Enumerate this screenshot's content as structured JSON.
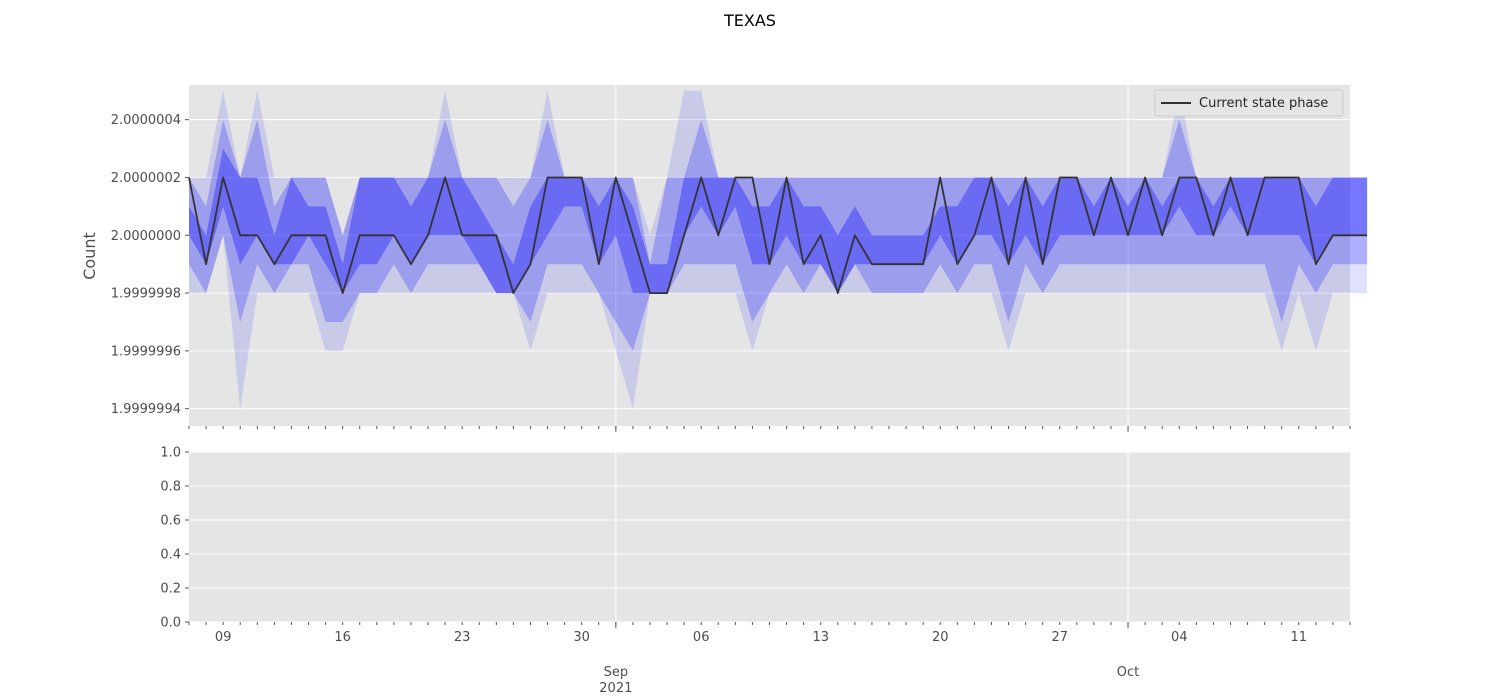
{
  "chart_data": {
    "type": "line",
    "title": "TEXAS",
    "ylabel": "Count",
    "colors": {
      "background": "#e5e5e5",
      "grid": "#ffffff",
      "line": "#333333",
      "band": "#0000ff"
    },
    "x_range": [
      "2021-08-07",
      "2021-10-14"
    ],
    "top": {
      "ylim": [
        1.99999934,
        2.00000052
      ],
      "yticks": [
        {
          "value": 2.0000004,
          "label": "2.0000004"
        },
        {
          "value": 2.0000002,
          "label": "2.0000002"
        },
        {
          "value": 2.0,
          "label": "2.0000000"
        },
        {
          "value": 1.9999998,
          "label": "1.9999998"
        },
        {
          "value": 1.9999996,
          "label": "1.9999996"
        },
        {
          "value": 1.9999994,
          "label": "1.9999994"
        }
      ],
      "legend": {
        "position": "top-right",
        "label": "Current state phase"
      },
      "series": [
        {
          "name": "Current state phase",
          "x_start": "2021-08-07",
          "step": "1 day",
          "values": [
            2.0000002,
            1.9999999,
            2.0000002,
            2.0,
            2.0,
            1.9999999,
            2.0,
            2.0,
            2.0,
            1.9999998,
            2.0,
            2.0,
            2.0,
            1.9999999,
            2.0,
            2.0000002,
            2.0,
            2.0,
            2.0,
            1.9999998,
            1.9999999,
            2.0000002,
            2.0000002,
            2.0000002,
            1.9999999,
            2.0000002,
            2.0,
            1.9999998,
            1.9999998,
            2.0,
            2.0000002,
            2.0,
            2.0000002,
            2.0000002,
            1.9999999,
            2.0000002,
            1.9999999,
            2.0,
            1.9999998,
            2.0,
            1.9999999,
            1.9999999,
            1.9999999,
            1.9999999,
            2.0000002,
            1.9999999,
            2.0,
            2.0000002,
            1.9999999,
            2.0000002,
            1.9999999,
            2.0000002,
            2.0000002,
            2.0,
            2.0000002,
            2.0,
            2.0000002,
            2.0,
            2.0000002,
            2.0000002,
            2.0,
            2.0000002,
            2.0,
            2.0000002,
            2.0000002,
            2.0000002,
            1.9999999,
            2.0,
            2.0,
            2.0
          ]
        }
      ],
      "bands": [
        {
          "upper": [
            2.0000002,
            2.0000002,
            2.0000005,
            2.0000002,
            2.0000005,
            2.0000002,
            2.0000002,
            2.0000002,
            2.0000002,
            2.0,
            2.0000002,
            2.0000002,
            2.0000002,
            2.0000002,
            2.0000002,
            2.0000005,
            2.0000002,
            2.0000002,
            2.0000002,
            2.0000002,
            2.0000002,
            2.0000005,
            2.0000002,
            2.0000002,
            2.0000002,
            2.0000002,
            2.0000002,
            2.0,
            2.0000002,
            2.0000005,
            2.0000005,
            2.0000002,
            2.0000002,
            2.0000002,
            2.0000002,
            2.0000002,
            2.0000002,
            2.0000002,
            2.0000002,
            2.0000002,
            2.0000002,
            2.0000002,
            2.0000002,
            2.0000002,
            2.0000002,
            2.0000002,
            2.0000002,
            2.0000002,
            2.0000002,
            2.0000002,
            2.0000002,
            2.0000002,
            2.0000002,
            2.0000002,
            2.0000002,
            2.0000002,
            2.0000002,
            2.0000002,
            2.0000005,
            2.0000002,
            2.0000002,
            2.0000002,
            2.0000002,
            2.0000002,
            2.0000002,
            2.0000002,
            2.0000002,
            2.0000002,
            2.0000002,
            2.0000002
          ],
          "lower": [
            1.9999998,
            1.9999998,
            2.0,
            1.9999994,
            1.9999998,
            1.9999998,
            1.9999998,
            1.9999998,
            1.9999996,
            1.9999996,
            1.9999998,
            1.9999998,
            1.9999998,
            1.9999998,
            1.9999998,
            1.9999998,
            1.9999998,
            1.9999998,
            1.9999998,
            1.9999998,
            1.9999996,
            1.9999998,
            1.9999998,
            1.9999998,
            1.9999998,
            1.9999996,
            1.9999994,
            1.9999998,
            1.9999998,
            1.9999998,
            1.9999998,
            1.9999998,
            1.9999998,
            1.9999996,
            1.9999998,
            1.9999998,
            1.9999998,
            1.9999998,
            1.9999998,
            1.9999998,
            1.9999998,
            1.9999998,
            1.9999998,
            1.9999998,
            1.9999998,
            1.9999998,
            1.9999998,
            1.9999998,
            1.9999996,
            1.9999998,
            1.9999998,
            1.9999998,
            1.9999998,
            1.9999998,
            1.9999998,
            1.9999998,
            1.9999998,
            1.9999998,
            1.9999998,
            1.9999998,
            1.9999998,
            1.9999998,
            1.9999998,
            1.9999998,
            1.9999996,
            1.9999998,
            1.9999996,
            1.9999998,
            1.9999998,
            1.9999998
          ],
          "opacity": 0.12
        },
        {
          "upper": [
            2.0000002,
            2.0000001,
            2.0000004,
            2.0000002,
            2.0000004,
            2.0000001,
            2.0000002,
            2.0000002,
            2.0000002,
            2.0,
            2.0000002,
            2.0000002,
            2.0000002,
            2.0000002,
            2.0000002,
            2.0000004,
            2.0000002,
            2.0000002,
            2.0000002,
            2.0000001,
            2.0000002,
            2.0000004,
            2.0000002,
            2.0000002,
            2.0000002,
            2.0000002,
            2.0000002,
            1.9999999,
            2.0000002,
            2.0000002,
            2.0000004,
            2.0000002,
            2.0000002,
            2.0000002,
            2.0000002,
            2.0000002,
            2.0000002,
            2.0000002,
            2.0000002,
            2.0000002,
            2.0000002,
            2.0000002,
            2.0000002,
            2.0000002,
            2.0000002,
            2.0000002,
            2.0000002,
            2.0000002,
            2.0000002,
            2.0000002,
            2.0000002,
            2.0000002,
            2.0000002,
            2.0000002,
            2.0000002,
            2.0000002,
            2.0000002,
            2.0000002,
            2.0000004,
            2.0000002,
            2.0000002,
            2.0000002,
            2.0000002,
            2.0000002,
            2.0000002,
            2.0000002,
            2.0000002,
            2.0000002,
            2.0000002,
            2.0000002
          ],
          "lower": [
            1.9999999,
            1.9999998,
            2.0,
            1.9999997,
            1.9999999,
            1.9999998,
            1.9999999,
            1.9999999,
            1.9999997,
            1.9999997,
            1.9999998,
            1.9999998,
            1.9999999,
            1.9999998,
            1.9999999,
            1.9999999,
            1.9999999,
            1.9999999,
            1.9999998,
            1.9999998,
            1.9999997,
            1.9999999,
            1.9999999,
            1.9999999,
            1.9999998,
            1.9999997,
            1.9999996,
            1.9999998,
            1.9999998,
            1.9999999,
            1.9999999,
            1.9999999,
            1.9999999,
            1.9999997,
            1.9999998,
            1.9999999,
            1.9999998,
            1.9999999,
            1.9999998,
            1.9999999,
            1.9999998,
            1.9999998,
            1.9999998,
            1.9999998,
            1.9999999,
            1.9999998,
            1.9999999,
            1.9999999,
            1.9999997,
            1.9999999,
            1.9999998,
            1.9999999,
            1.9999999,
            1.9999999,
            1.9999999,
            1.9999999,
            1.9999999,
            1.9999999,
            1.9999999,
            1.9999999,
            1.9999999,
            1.9999999,
            1.9999999,
            1.9999999,
            1.9999997,
            1.9999999,
            1.9999998,
            1.9999999,
            1.9999999,
            1.9999999
          ],
          "opacity": 0.22
        },
        {
          "upper": [
            2.0000001,
            2.0,
            2.0000003,
            2.0000002,
            2.0000002,
            2.0,
            2.0000002,
            2.0000001,
            2.0000001,
            1.9999999,
            2.0000002,
            2.0000002,
            2.0000002,
            2.0000001,
            2.0000002,
            2.0000002,
            2.0000002,
            2.0000001,
            2.0,
            1.9999999,
            2.0000001,
            2.0000002,
            2.0000002,
            2.0000002,
            2.0000001,
            2.0000002,
            2.0000001,
            1.9999999,
            1.9999999,
            2.0000002,
            2.0000002,
            2.0000002,
            2.0000002,
            2.0000001,
            2.0000001,
            2.0000002,
            2.0000001,
            2.0000001,
            2.0,
            2.0000001,
            2.0,
            2.0,
            2.0,
            2.0,
            2.0000001,
            2.0000001,
            2.0000002,
            2.0000002,
            2.0000001,
            2.0000002,
            2.0000001,
            2.0000002,
            2.0000002,
            2.0000001,
            2.0000002,
            2.0000001,
            2.0000002,
            2.0000001,
            2.0000002,
            2.0000002,
            2.0000001,
            2.0000002,
            2.0000002,
            2.0000002,
            2.0000002,
            2.0000002,
            2.0000001,
            2.0000002,
            2.0000002,
            2.0000002
          ],
          "lower": [
            2.0,
            1.9999999,
            2.0000001,
            1.9999999,
            2.0,
            1.9999999,
            1.9999999,
            2.0,
            1.9999999,
            1.9999998,
            1.9999999,
            1.9999999,
            2.0,
            1.9999999,
            2.0,
            2.0,
            2.0,
            1.9999999,
            1.9999998,
            1.9999998,
            1.9999999,
            2.0,
            2.0000001,
            2.0000001,
            1.9999999,
            2.0,
            1.9999998,
            1.9999998,
            1.9999998,
            2.0,
            2.0000001,
            2.0,
            2.0000001,
            1.9999999,
            1.9999999,
            2.0,
            1.9999999,
            1.9999999,
            1.9999998,
            1.9999999,
            1.9999999,
            1.9999999,
            1.9999999,
            1.9999999,
            2.0,
            1.9999999,
            2.0,
            2.0,
            1.9999999,
            2.0,
            1.9999999,
            2.0,
            2.0,
            2.0,
            2.0,
            2.0,
            2.0,
            2.0,
            2.0000001,
            2.0,
            2.0,
            2.0000001,
            2.0,
            2.0,
            2.0,
            2.0,
            1.9999999,
            2.0,
            2.0,
            2.0
          ],
          "opacity": 0.32
        }
      ]
    },
    "bottom": {
      "ylim": [
        0.0,
        1.0
      ],
      "yticks": [
        {
          "value": 1.0,
          "label": "1.0"
        },
        {
          "value": 0.8,
          "label": "0.8"
        },
        {
          "value": 0.6,
          "label": "0.6"
        },
        {
          "value": 0.4,
          "label": "0.4"
        },
        {
          "value": 0.2,
          "label": "0.2"
        },
        {
          "value": 0.0,
          "label": "0.0"
        }
      ]
    },
    "xticks_major": [
      {
        "date": "2021-09-01",
        "label": "Sep",
        "sublabel": "2021"
      },
      {
        "date": "2021-10-01",
        "label": "Oct",
        "sublabel": ""
      }
    ],
    "xticks_minor": [
      {
        "date": "2021-08-09",
        "label": "09"
      },
      {
        "date": "2021-08-16",
        "label": "16"
      },
      {
        "date": "2021-08-23",
        "label": "23"
      },
      {
        "date": "2021-08-30",
        "label": "30"
      },
      {
        "date": "2021-09-06",
        "label": "06"
      },
      {
        "date": "2021-09-13",
        "label": "13"
      },
      {
        "date": "2021-09-20",
        "label": "20"
      },
      {
        "date": "2021-09-27",
        "label": "27"
      },
      {
        "date": "2021-10-04",
        "label": "04"
      },
      {
        "date": "2021-10-11",
        "label": "11"
      }
    ]
  }
}
